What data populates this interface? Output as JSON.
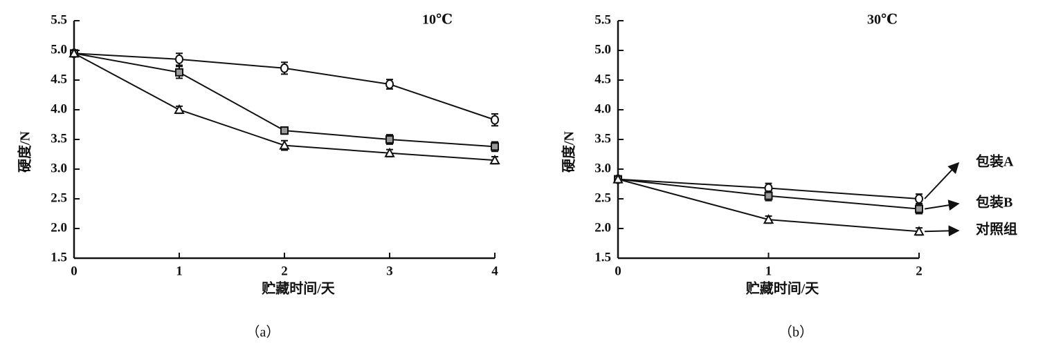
{
  "chart_data": [
    {
      "type": "line",
      "title": "10℃",
      "caption": "（a）",
      "x_label": "贮藏时间/天",
      "y_label": "硬度/N",
      "x": [
        0,
        1,
        2,
        3,
        4
      ],
      "series": [
        {
          "color": "#111111",
          "marker": "circle",
          "values": [
            4.95,
            4.85,
            4.7,
            4.43,
            3.83
          ],
          "errors": [
            0.05,
            0.1,
            0.1,
            0.08,
            0.1
          ]
        },
        {
          "color": "#111111",
          "marker": "square",
          "values": [
            4.95,
            4.63,
            3.65,
            3.5,
            3.38
          ],
          "errors": [
            0.05,
            0.1,
            0.06,
            0.08,
            0.08
          ]
        },
        {
          "color": "#111111",
          "marker": "triangle",
          "values": [
            4.95,
            4.0,
            3.4,
            3.27,
            3.15
          ],
          "errors": [
            0.05,
            0.06,
            0.08,
            0.06,
            0.06
          ]
        }
      ],
      "xlim": [
        0,
        4
      ],
      "ylim": [
        1.5,
        5.5
      ],
      "xticks": [
        0,
        1,
        2,
        3,
        4
      ],
      "yticks": [
        1.5,
        {
          "value": 2,
          "label": "2.0"
        },
        2.5,
        {
          "value": 3,
          "label": "3.0"
        },
        3.5,
        {
          "value": 4,
          "label": "4.0"
        },
        4.5,
        {
          "value": 5,
          "label": "5.0"
        },
        5.5
      ]
    },
    {
      "type": "line",
      "title": "30℃",
      "caption": "（b）",
      "x_label": "贮藏时间/天",
      "y_label": "硬度/N",
      "x": [
        0,
        1,
        2
      ],
      "series": [
        {
          "name": "包装A",
          "color": "#111111",
          "marker": "circle",
          "values": [
            2.83,
            2.68,
            2.5
          ],
          "errors": [
            0.05,
            0.08,
            0.08
          ]
        },
        {
          "name": "包装B",
          "color": "#111111",
          "marker": "square",
          "values": [
            2.83,
            2.55,
            2.33
          ],
          "errors": [
            0.05,
            0.08,
            0.08
          ]
        },
        {
          "name": "对照组",
          "color": "#111111",
          "marker": "triangle",
          "values": [
            2.83,
            2.15,
            1.95
          ],
          "errors": [
            0.05,
            0.06,
            0.06
          ]
        }
      ],
      "xlim": [
        0,
        2
      ],
      "ylim": [
        1.5,
        5.5
      ],
      "xticks": [
        0,
        1,
        2
      ],
      "yticks": [
        1.5,
        {
          "value": 2,
          "label": "2.0"
        },
        2.5,
        {
          "value": 3,
          "label": "3.0"
        },
        3.5,
        {
          "value": 4,
          "label": "4.0"
        },
        4.5,
        {
          "value": 5,
          "label": "5.0"
        },
        5.5
      ]
    }
  ]
}
